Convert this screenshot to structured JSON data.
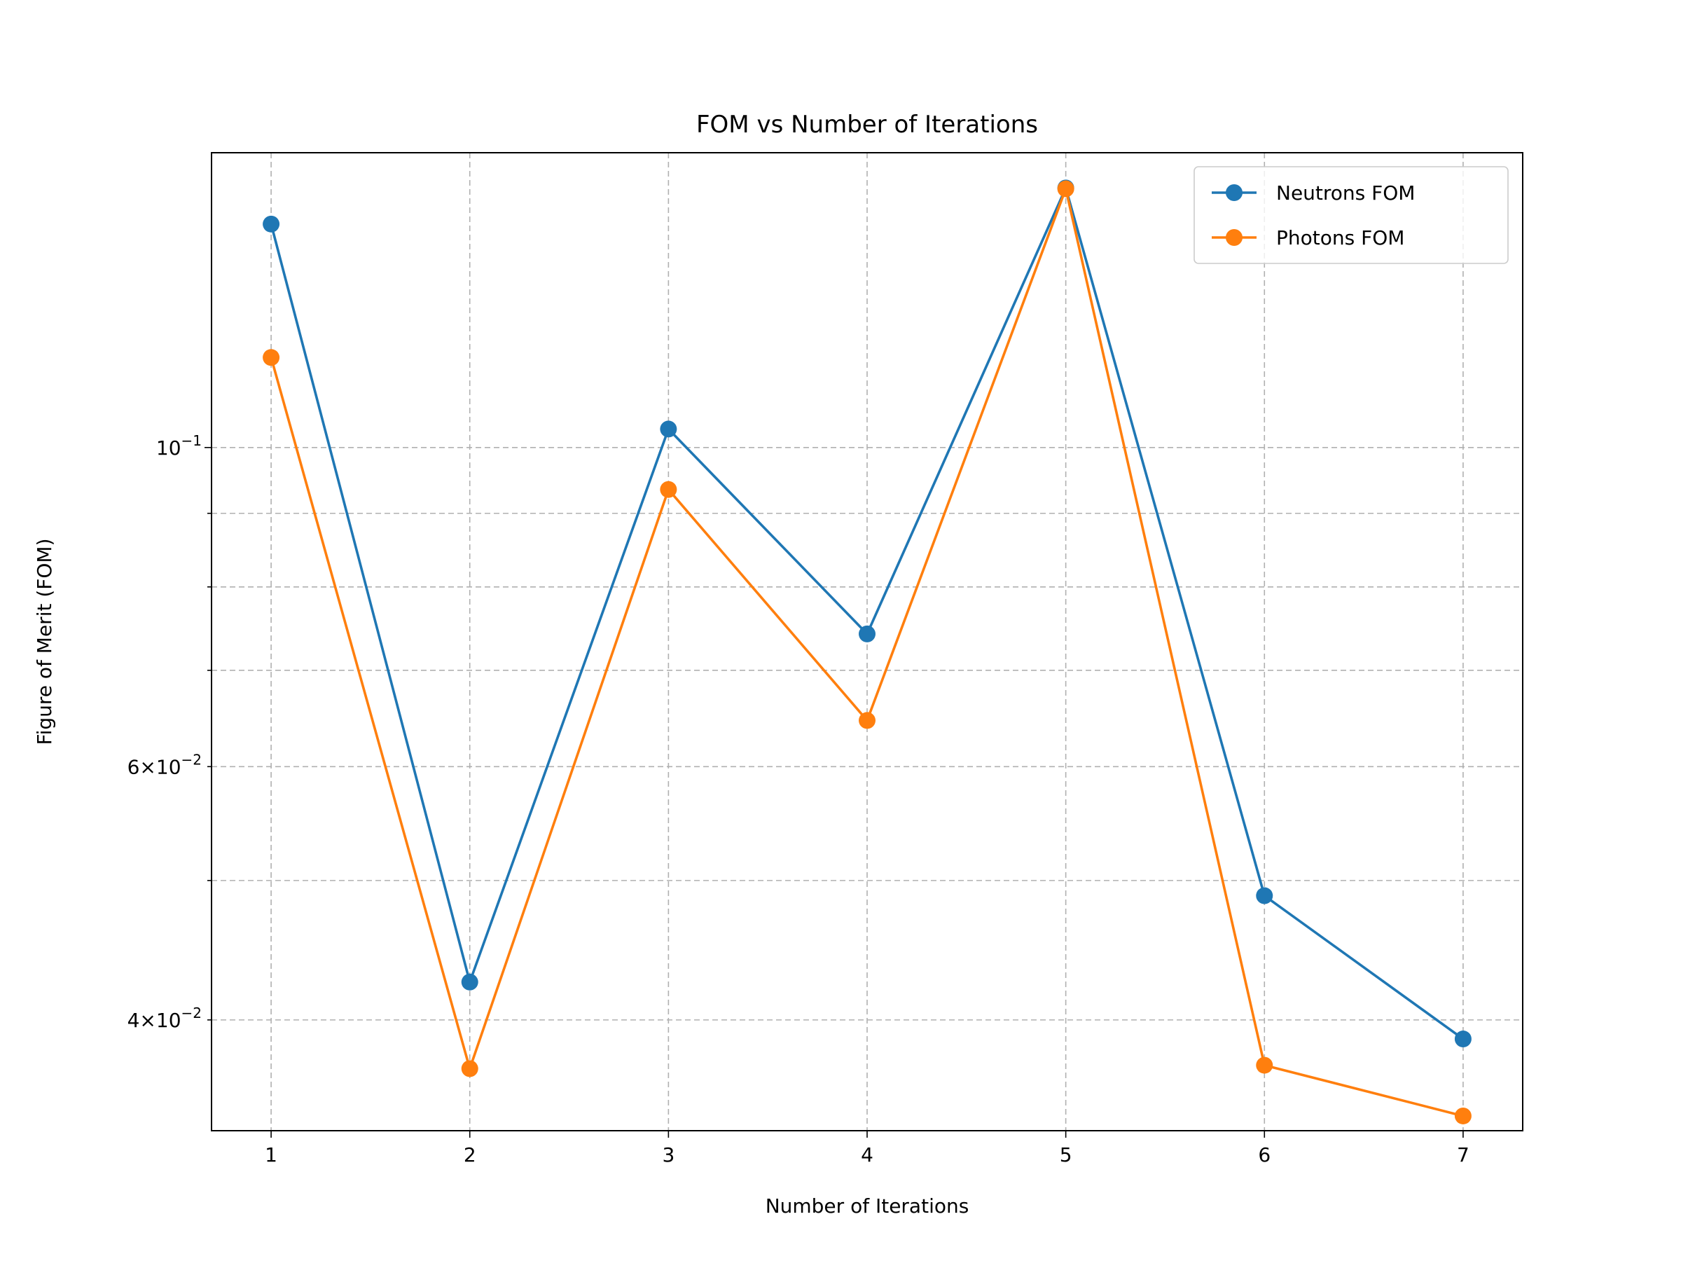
{
  "chart_data": {
    "type": "line",
    "title": "FOM vs Number of Iterations",
    "xlabel": "Number of Iterations",
    "ylabel": "Figure of Merit (FOM)",
    "yscale": "log",
    "xlim": [
      0.7,
      7.3
    ],
    "ylim": [
      0.0335,
      0.1603
    ],
    "grid": true,
    "legend_position": "top-right",
    "x": [
      1,
      2,
      3,
      4,
      5,
      6,
      7
    ],
    "x_ticks": [
      {
        "value": 1,
        "label": "1"
      },
      {
        "value": 2,
        "label": "2"
      },
      {
        "value": 3,
        "label": "3"
      },
      {
        "value": 4,
        "label": "4"
      },
      {
        "value": 5,
        "label": "5"
      },
      {
        "value": 6,
        "label": "6"
      },
      {
        "value": 7,
        "label": "7"
      }
    ],
    "y_major_ticks": [
      {
        "value": 0.1,
        "base": "10",
        "exp": "−1"
      }
    ],
    "y_minor_ticks": [
      {
        "value": 0.04,
        "mantissa": "4",
        "base": "10",
        "exp": "−2"
      },
      {
        "value": 0.05
      },
      {
        "value": 0.06,
        "mantissa": "6",
        "base": "10",
        "exp": "−2"
      },
      {
        "value": 0.07
      },
      {
        "value": 0.08
      },
      {
        "value": 0.09
      }
    ],
    "series": [
      {
        "name": "Neutrons FOM",
        "color": "#1f77b4",
        "values": [
          0.143,
          0.0425,
          0.103,
          0.0742,
          0.1515,
          0.0488,
          0.0388
        ]
      },
      {
        "name": "Photons FOM",
        "color": "#ff7f0e",
        "values": [
          0.1155,
          0.037,
          0.0935,
          0.0646,
          0.1513,
          0.0372,
          0.0343
        ]
      }
    ]
  }
}
